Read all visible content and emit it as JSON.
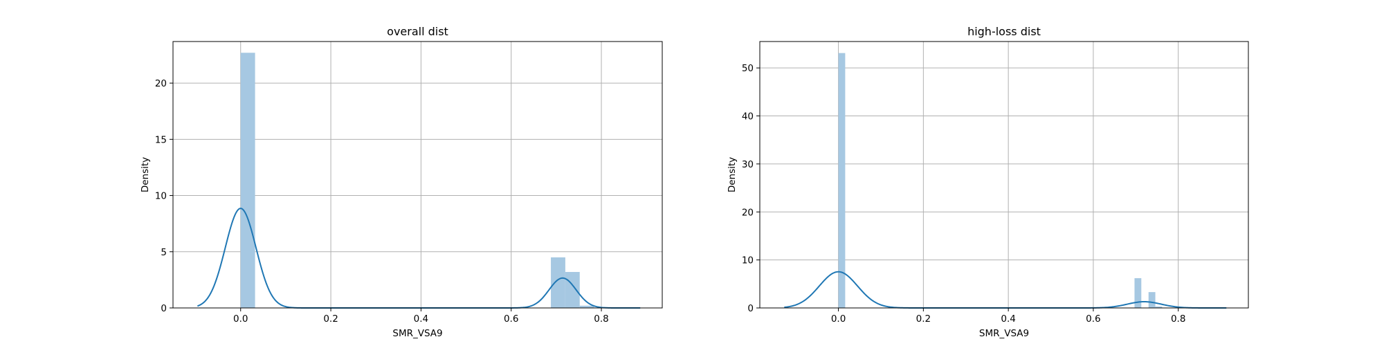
{
  "colors": {
    "bar": "#a6c8e2",
    "kde": "#1f77b4",
    "grid": "#b0b0b0",
    "axis": "#000000"
  },
  "chart_data": [
    {
      "type": "bar",
      "title": "overall dist",
      "xlabel": "SMR_VSA9",
      "ylabel": "Density",
      "xlim": [
        -0.15,
        0.935
      ],
      "ylim": [
        0,
        23.7
      ],
      "xticks": [
        "0.0",
        "0.2",
        "0.4",
        "0.6",
        "0.8"
      ],
      "yticks": [
        "0",
        "5",
        "10",
        "15",
        "20"
      ],
      "grid": true,
      "bins": [
        {
          "x0": 0.0,
          "x1": 0.032,
          "density": 22.7
        },
        {
          "x0": 0.688,
          "x1": 0.72,
          "density": 4.5
        },
        {
          "x0": 0.72,
          "x1": 0.752,
          "density": 3.2
        },
        {
          "x0": 0.752,
          "x1": 0.784,
          "density": 0.2
        }
      ],
      "kde": [
        {
          "mu": 0.0,
          "sigma": 0.034,
          "weight": 0.755
        },
        {
          "mu": 0.714,
          "sigma": 0.03,
          "weight": 0.2
        }
      ]
    },
    {
      "type": "bar",
      "title": "high-loss dist",
      "xlabel": "SMR_VSA9",
      "ylabel": "Density",
      "xlim": [
        -0.185,
        0.965
      ],
      "ylim": [
        0,
        55.5
      ],
      "xticks": [
        "0.0",
        "0.2",
        "0.4",
        "0.6",
        "0.8"
      ],
      "yticks": [
        "0",
        "10",
        "20",
        "30",
        "40",
        "50"
      ],
      "grid": true,
      "bins": [
        {
          "x0": 0.0,
          "x1": 0.016,
          "density": 53.1
        },
        {
          "x0": 0.697,
          "x1": 0.713,
          "density": 6.2
        },
        {
          "x0": 0.73,
          "x1": 0.746,
          "density": 3.3
        },
        {
          "x0": 0.746,
          "x1": 0.762,
          "density": 0.3
        }
      ],
      "kde": [
        {
          "mu": 0.0,
          "sigma": 0.045,
          "weight": 0.85
        },
        {
          "mu": 0.72,
          "sigma": 0.04,
          "weight": 0.13
        }
      ]
    }
  ]
}
